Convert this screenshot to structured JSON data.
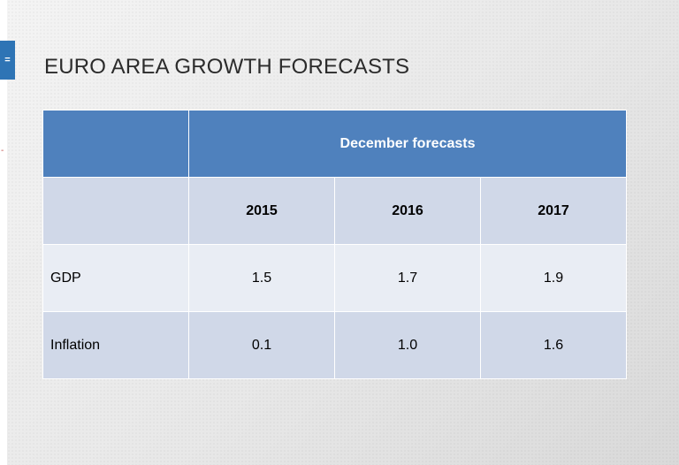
{
  "slide": {
    "title": "EURO AREA GROWTH FORECASTS",
    "section_tab_glyph": "=",
    "stray_mark": "-"
  },
  "table": {
    "group_header": "December forecasts",
    "years": [
      "2015",
      "2016",
      "2017"
    ],
    "rows": [
      {
        "label": "GDP",
        "values": [
          "1.5",
          "1.7",
          "1.9"
        ]
      },
      {
        "label": "Inflation",
        "values": [
          "0.1",
          "1.0",
          "1.6"
        ]
      }
    ]
  },
  "colors": {
    "header_blue": "#4f81bd",
    "band_light": "#e9edf4",
    "band_dark": "#d0d8e8",
    "tab_blue": "#2e74b5"
  }
}
